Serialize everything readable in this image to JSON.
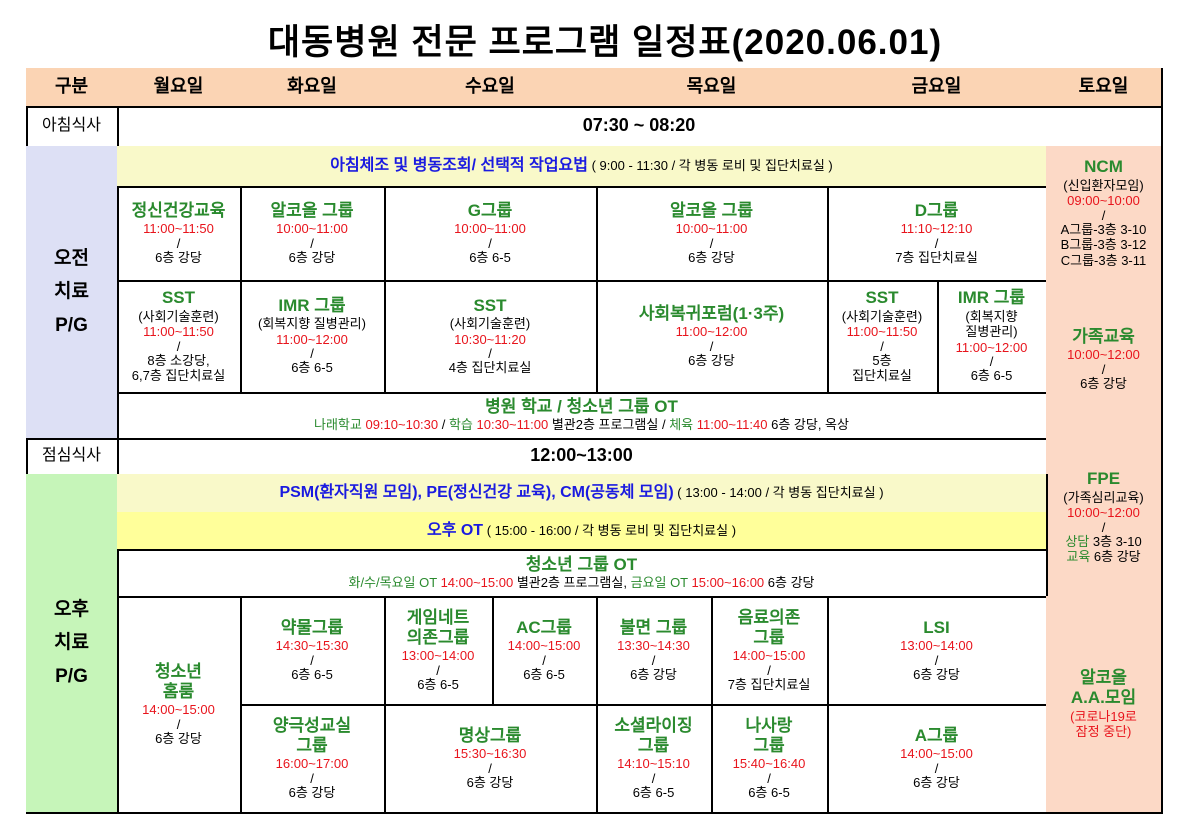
{
  "title": "대동병원 전문 프로그램 일정표(2020.06.01)",
  "colors": {
    "header_bg": "#fbd4b4",
    "am_label_bg": "#dde0f5",
    "pm_label_bg": "#c6f5b9",
    "saturday_bg": "#fcd9c6",
    "banner_light_yellow": "#f9f9c9",
    "banner_yellow": "#ffff9a",
    "title_green": "#2a8a2e",
    "time_red": "#e8141c",
    "banner_blue": "#1a1ae0"
  },
  "header": [
    "구분",
    "월요일",
    "화요일",
    "수요일",
    "목요일",
    "금요일",
    "토요일"
  ],
  "rows": {
    "breakfast": {
      "label": "아침식사",
      "time": "07:30  ~  08:20"
    },
    "am": {
      "label": [
        "오전",
        "치료",
        "P/G"
      ]
    },
    "lunch": {
      "label": "점심식사",
      "time": "12:00~13:00"
    },
    "pm": {
      "label": [
        "오후",
        "치료",
        "P/G"
      ]
    }
  },
  "cells": {
    "am_banner": [
      [
        {
          "s": "blue",
          "t": "아침체조 및 병동조회/ 선택적 작업요법"
        },
        {
          "s": "black",
          "t": "  ( 9:00 - 11:30 / 각 병동 로비 및 집단치료실 )"
        }
      ]
    ],
    "am1_mon": [
      {
        "k": "title",
        "t": "정신건강교육"
      },
      {
        "k": "time",
        "t": "11:00~11:50"
      },
      {
        "k": "slash",
        "t": "/"
      },
      {
        "k": "loc",
        "t": "6층 강당"
      }
    ],
    "am1_tue": [
      {
        "k": "title",
        "t": "알코올 그룹"
      },
      {
        "k": "time",
        "t": "10:00~11:00"
      },
      {
        "k": "slash",
        "t": "/"
      },
      {
        "k": "loc",
        "t": "6층 강당"
      }
    ],
    "am1_wed": [
      {
        "k": "title",
        "t": "G그룹"
      },
      {
        "k": "time",
        "t": "10:00~11:00"
      },
      {
        "k": "slash",
        "t": "/"
      },
      {
        "k": "loc",
        "t": "6층 6-5"
      }
    ],
    "am1_thu": [
      {
        "k": "title",
        "t": "알코올 그룹"
      },
      {
        "k": "time",
        "t": "10:00~11:00"
      },
      {
        "k": "slash",
        "t": "/"
      },
      {
        "k": "loc",
        "t": "6층 강당"
      }
    ],
    "am1_fri": [
      {
        "k": "title",
        "t": "D그룹"
      },
      {
        "k": "time",
        "t": "11:10~12:10"
      },
      {
        "k": "slash",
        "t": "/"
      },
      {
        "k": "loc",
        "t": "7층 집단치료실"
      }
    ],
    "am2_mon": [
      {
        "k": "title",
        "t": "SST"
      },
      {
        "k": "sub",
        "t": "(사회기술훈련)"
      },
      {
        "k": "time",
        "t": "11:00~11:50"
      },
      {
        "k": "slash",
        "t": "/"
      },
      {
        "k": "loc",
        "t": "8층 소강당,"
      },
      {
        "k": "loc",
        "t": "6,7층 집단치료실"
      }
    ],
    "am2_tue": [
      {
        "k": "title",
        "t": "IMR 그룹"
      },
      {
        "k": "sub",
        "t": "(회복지향 질병관리)"
      },
      {
        "k": "time",
        "t": "11:00~12:00"
      },
      {
        "k": "slash",
        "t": "/"
      },
      {
        "k": "loc",
        "t": "6층 6-5"
      }
    ],
    "am2_wed": [
      {
        "k": "title",
        "t": "SST"
      },
      {
        "k": "sub",
        "t": "(사회기술훈련)"
      },
      {
        "k": "time",
        "t": "10:30~11:20"
      },
      {
        "k": "slash",
        "t": "/"
      },
      {
        "k": "loc",
        "t": "4층 집단치료실"
      }
    ],
    "am2_thu": [
      {
        "k": "title",
        "t": "사회복귀포럼(1·3주)"
      },
      {
        "k": "time",
        "t": "11:00~12:00"
      },
      {
        "k": "slash",
        "t": "/"
      },
      {
        "k": "loc",
        "t": "6층 강당"
      }
    ],
    "am2_fri_a": [
      {
        "k": "title",
        "t": "SST"
      },
      {
        "k": "sub",
        "t": "(사회기술훈련)"
      },
      {
        "k": "time",
        "t": "11:00~11:50"
      },
      {
        "k": "slash",
        "t": "/"
      },
      {
        "k": "loc",
        "t": "5층"
      },
      {
        "k": "loc",
        "t": "집단치료실"
      }
    ],
    "am2_fri_b": [
      {
        "k": "title",
        "t": "IMR 그룹"
      },
      {
        "k": "sub",
        "t": "(회복지향"
      },
      {
        "k": "sub",
        "t": "질병관리)"
      },
      {
        "k": "time",
        "t": "11:00~12:00"
      },
      {
        "k": "slash",
        "t": "/"
      },
      {
        "k": "loc",
        "t": "6층 6-5"
      }
    ],
    "school": [
      {
        "k": "title",
        "t": "병원 학교 / 청소년 그룹 OT"
      },
      [
        {
          "s": "green",
          "t": "나래학교 "
        },
        {
          "s": "red",
          "t": "09:10~10:30"
        },
        {
          "s": "black",
          "t": " / "
        },
        {
          "s": "green",
          "t": "학습 "
        },
        {
          "s": "red",
          "t": "10:30~11:00"
        },
        {
          "s": "black",
          "t": " 별관2층 프로그램실 / "
        },
        {
          "s": "green",
          "t": "체육 "
        },
        {
          "s": "red",
          "t": "11:00~11:40"
        },
        {
          "s": "black",
          "t": " 6층 강당, 옥상"
        }
      ]
    ],
    "sat_ncm": [
      {
        "k": "title",
        "t": "NCM"
      },
      {
        "k": "sub",
        "t": "(신입환자모임)"
      },
      {
        "k": "time",
        "t": "09:00~10:00"
      },
      {
        "k": "slash",
        "t": "/"
      },
      {
        "k": "sub",
        "t": "A그룹-3층 3-10"
      },
      {
        "k": "sub",
        "t": "B그룹-3층 3-12"
      },
      {
        "k": "sub",
        "t": "C그룹-3층 3-11"
      }
    ],
    "sat_family": [
      {
        "k": "title",
        "t": "가족교육"
      },
      {
        "k": "time",
        "t": "10:00~12:00"
      },
      {
        "k": "slash",
        "t": "/"
      },
      {
        "k": "loc",
        "t": "6층 강당"
      }
    ],
    "sat_fpe": [
      {
        "k": "title",
        "t": "FPE"
      },
      {
        "k": "sub",
        "t": "(가족심리교육)"
      },
      {
        "k": "time",
        "t": "10:00~12:00"
      },
      {
        "k": "slash",
        "t": "/"
      },
      [
        {
          "s": "green",
          "t": "상담 "
        },
        {
          "s": "black",
          "t": "3층 3-10"
        }
      ],
      [
        {
          "s": "green",
          "t": "교육 "
        },
        {
          "s": "black",
          "t": "6층 강당"
        }
      ]
    ],
    "psm": [
      [
        {
          "s": "blue",
          "t": "PSM(환자직원 모임), PE(정신건강 교육), CM(공동체 모임)"
        },
        {
          "s": "black",
          "t": "  ( 13:00 - 14:00 / 각 병동 집단치료실 )"
        }
      ]
    ],
    "pm_ot": [
      [
        {
          "s": "blue",
          "t": "오후 OT"
        },
        {
          "s": "black",
          "t": "  ( 15:00 - 16:00 / 각 병동 로비 및 집단치료실 )"
        }
      ]
    ],
    "youth_ot": [
      {
        "k": "title",
        "t": "청소년 그룹 OT"
      },
      [
        {
          "s": "green",
          "t": "화/수/목요일 OT "
        },
        {
          "s": "red",
          "t": "14:00~15:00"
        },
        {
          "s": "black",
          "t": " 별관2층 프로그램실,   "
        },
        {
          "s": "green",
          "t": "금요일 OT "
        },
        {
          "s": "red",
          "t": "15:00~16:00"
        },
        {
          "s": "black",
          "t": "  6층 강당"
        }
      ]
    ],
    "pm_mon": [
      {
        "k": "title",
        "t": "청소년"
      },
      {
        "k": "title",
        "t": "홈룸"
      },
      {
        "k": "time",
        "t": "14:00~15:00"
      },
      {
        "k": "slash",
        "t": "/"
      },
      {
        "k": "loc",
        "t": "6층 강당"
      }
    ],
    "pmA_tue": [
      {
        "k": "title",
        "t": "약물그룹"
      },
      {
        "k": "time",
        "t": "14:30~15:30"
      },
      {
        "k": "slash",
        "t": "/"
      },
      {
        "k": "loc",
        "t": "6층 6-5"
      }
    ],
    "pmA_wed_a": [
      {
        "k": "title",
        "t": "게임네트"
      },
      {
        "k": "title",
        "t": "의존그룹"
      },
      {
        "k": "time",
        "t": "13:00~14:00"
      },
      {
        "k": "slash",
        "t": "/"
      },
      {
        "k": "loc",
        "t": "6층 6-5"
      }
    ],
    "pmA_wed_b": [
      {
        "k": "title",
        "t": "AC그룹"
      },
      {
        "k": "time",
        "t": "14:00~15:00"
      },
      {
        "k": "slash",
        "t": "/"
      },
      {
        "k": "loc",
        "t": "6층 6-5"
      }
    ],
    "pmA_thu_a": [
      {
        "k": "title",
        "t": "불면 그룹"
      },
      {
        "k": "time",
        "t": "13:30~14:30"
      },
      {
        "k": "slash",
        "t": "/"
      },
      {
        "k": "loc",
        "t": "6층 강당"
      }
    ],
    "pmA_thu_b": [
      {
        "k": "title",
        "t": "음료의존"
      },
      {
        "k": "title",
        "t": "그룹"
      },
      {
        "k": "time",
        "t": "14:00~15:00"
      },
      {
        "k": "slash",
        "t": "/"
      },
      {
        "k": "loc",
        "t": "7층 집단치료실"
      }
    ],
    "pmA_fri": [
      {
        "k": "title",
        "t": "LSI"
      },
      {
        "k": "time",
        "t": "13:00~14:00"
      },
      {
        "k": "slash",
        "t": "/"
      },
      {
        "k": "loc",
        "t": "6층 강당"
      }
    ],
    "pmB_tue": [
      {
        "k": "title",
        "t": "양극성교실"
      },
      {
        "k": "title",
        "t": "그룹"
      },
      {
        "k": "time",
        "t": "16:00~17:00"
      },
      {
        "k": "slash",
        "t": "/"
      },
      {
        "k": "loc",
        "t": "6층 강당"
      }
    ],
    "pmB_wed": [
      {
        "k": "title",
        "t": "명상그룹"
      },
      {
        "k": "time",
        "t": "15:30~16:30"
      },
      {
        "k": "slash",
        "t": "/"
      },
      {
        "k": "loc",
        "t": "6층 강당"
      }
    ],
    "pmB_thu_a": [
      {
        "k": "title",
        "t": "소셜라이징"
      },
      {
        "k": "title",
        "t": "그룹"
      },
      {
        "k": "time",
        "t": "14:10~15:10"
      },
      {
        "k": "slash",
        "t": "/"
      },
      {
        "k": "loc",
        "t": "6층 6-5"
      }
    ],
    "pmB_thu_b": [
      {
        "k": "title",
        "t": "나사랑"
      },
      {
        "k": "title",
        "t": "그룹"
      },
      {
        "k": "time",
        "t": "15:40~16:40"
      },
      {
        "k": "slash",
        "t": "/"
      },
      {
        "k": "loc",
        "t": "6층 6-5"
      }
    ],
    "pmB_fri": [
      {
        "k": "title",
        "t": "A그룹"
      },
      {
        "k": "time",
        "t": "14:00~15:00"
      },
      {
        "k": "slash",
        "t": "/"
      },
      {
        "k": "loc",
        "t": "6층 강당"
      }
    ],
    "sat_aa": [
      {
        "k": "title",
        "t": "알코올"
      },
      {
        "k": "title",
        "t": "A.A.모임"
      },
      {
        "k": "note",
        "t": "(코로나19로"
      },
      {
        "k": "note",
        "t": "잠정 중단)"
      }
    ]
  }
}
